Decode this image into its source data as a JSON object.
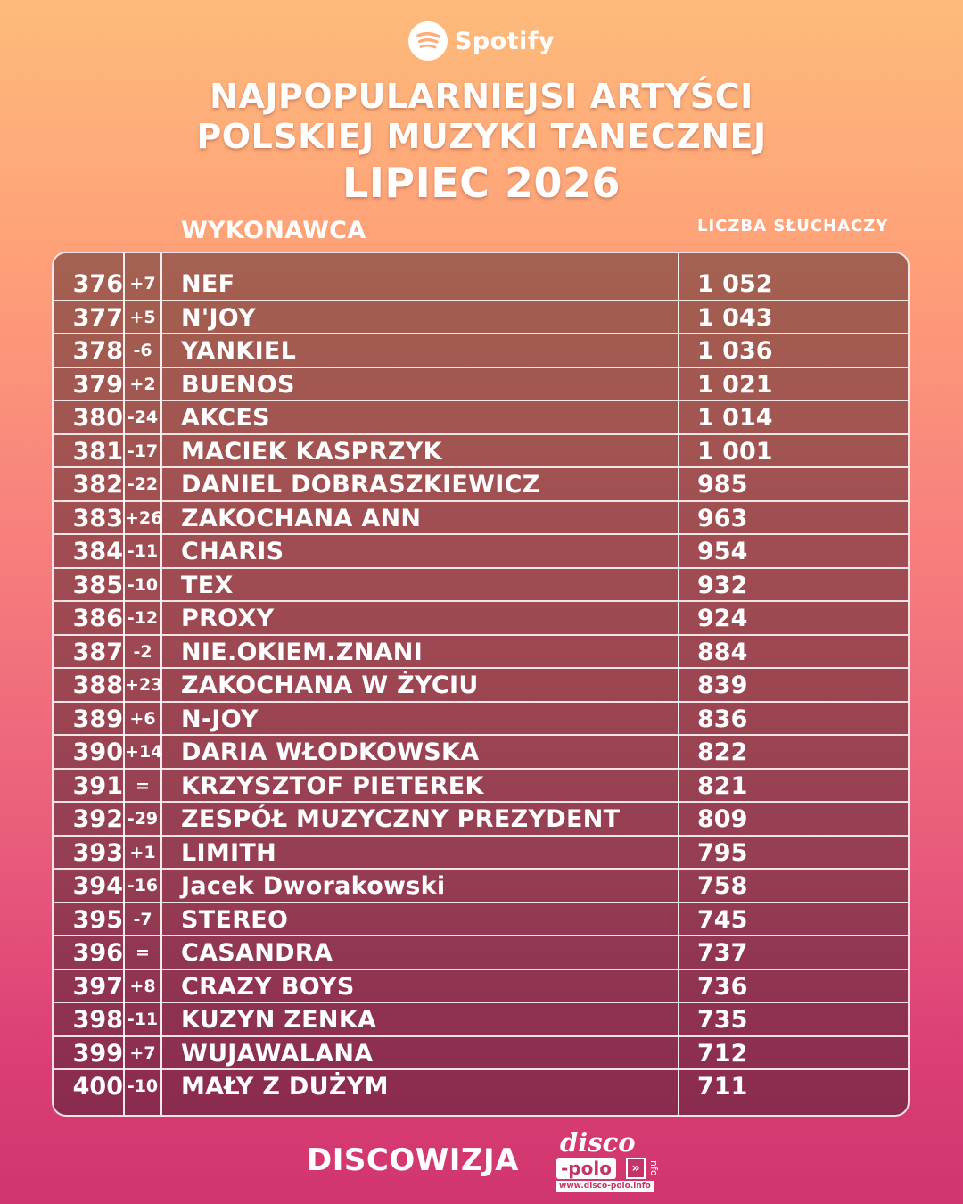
{
  "brand": {
    "name": "Spotify",
    "icon": "spotify-logo-icon"
  },
  "title": {
    "line1": "NAJPOPULARNIEJSI ARTYŚCI",
    "line2": "POLSKIEJ MUZYKI TANECZNEJ",
    "period": "LIPIEC 2026"
  },
  "columns": {
    "artist": "WYKONAWCA",
    "listeners": "LICZBA SŁUCHACZY"
  },
  "rows": [
    {
      "rank": "376",
      "change": "+7",
      "artist": "NEF",
      "listeners": "1 052"
    },
    {
      "rank": "377",
      "change": "+5",
      "artist": "N'JOY",
      "listeners": "1 043"
    },
    {
      "rank": "378",
      "change": "-6",
      "artist": "YANKIEL",
      "listeners": "1 036"
    },
    {
      "rank": "379",
      "change": "+2",
      "artist": "BUENOS",
      "listeners": "1 021"
    },
    {
      "rank": "380",
      "change": "-24",
      "artist": "AKCES",
      "listeners": "1 014"
    },
    {
      "rank": "381",
      "change": "-17",
      "artist": "MACIEK KASPRZYK",
      "listeners": "1 001"
    },
    {
      "rank": "382",
      "change": "-22",
      "artist": "DANIEL DOBRASZKIEWICZ",
      "listeners": "985"
    },
    {
      "rank": "383",
      "change": "+26",
      "artist": "ZAKOCHANA ANN",
      "listeners": "963"
    },
    {
      "rank": "384",
      "change": "-11",
      "artist": "CHARIS",
      "listeners": "954"
    },
    {
      "rank": "385",
      "change": "-10",
      "artist": "TEX",
      "listeners": "932"
    },
    {
      "rank": "386",
      "change": "-12",
      "artist": "PROXY",
      "listeners": "924"
    },
    {
      "rank": "387",
      "change": "-2",
      "artist": "NIE.OKIEM.ZNANI",
      "listeners": "884"
    },
    {
      "rank": "388",
      "change": "+23",
      "artist": "ZAKOCHANA W ŻYCIU",
      "listeners": "839"
    },
    {
      "rank": "389",
      "change": "+6",
      "artist": "N-JOY",
      "listeners": "836"
    },
    {
      "rank": "390",
      "change": "+14",
      "artist": "DARIA WŁODKOWSKA",
      "listeners": "822"
    },
    {
      "rank": "391",
      "change": "=",
      "artist": "KRZYSZTOF PIETEREK",
      "listeners": "821"
    },
    {
      "rank": "392",
      "change": "-29",
      "artist": "ZESPÓŁ MUZYCZNY PREZYDENT",
      "listeners": "809"
    },
    {
      "rank": "393",
      "change": "+1",
      "artist": "LIMITH",
      "listeners": "795"
    },
    {
      "rank": "394",
      "change": "-16",
      "artist": "Jacek Dworakowski",
      "listeners": "758"
    },
    {
      "rank": "395",
      "change": "-7",
      "artist": "STEREO",
      "listeners": "745"
    },
    {
      "rank": "396",
      "change": "=",
      "artist": "CASANDRA",
      "listeners": "737"
    },
    {
      "rank": "397",
      "change": "+8",
      "artist": "CRAZY BOYS",
      "listeners": "736"
    },
    {
      "rank": "398",
      "change": "-11",
      "artist": "KUZYN ZENKA",
      "listeners": "735"
    },
    {
      "rank": "399",
      "change": "+7",
      "artist": "WUJAWALANA",
      "listeners": "712"
    },
    {
      "rank": "400",
      "change": "-10",
      "artist": "MAŁY Z DUŻYM",
      "listeners": "711"
    }
  ],
  "footer": {
    "left": "DISCOWIZJA",
    "logo_word1": "disco",
    "logo_word2": "-polo",
    "logo_suffix": "info",
    "logo_url": "www.disco-polo.info"
  },
  "colors": {
    "accent": "#c2356a",
    "table_top": "#a46150",
    "table_bottom": "#8a2a50"
  }
}
